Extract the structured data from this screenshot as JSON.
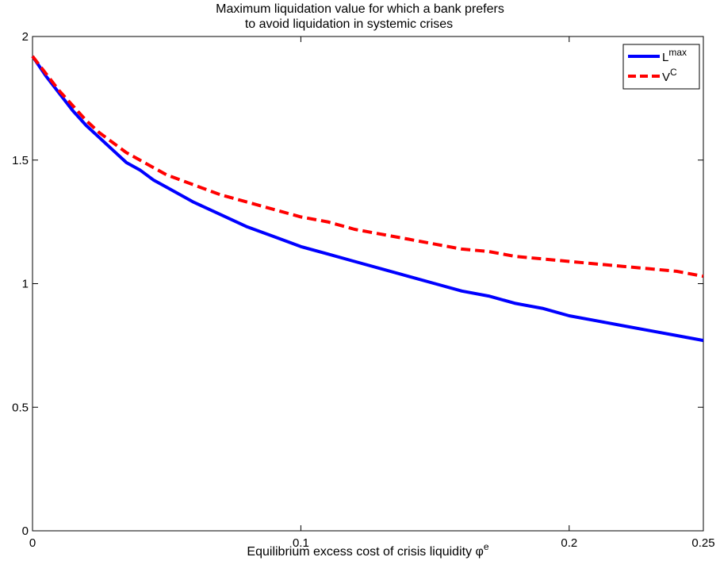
{
  "chart_data": {
    "type": "line",
    "title_line1": "Maximum liquidation value for which a bank prefers",
    "title_line2": "to avoid liquidation in systemic crises",
    "xlabel": "Equilibrium excess cost of crisis liquidity ",
    "xlabel_symbol": "φ",
    "xlabel_sup": "e",
    "xlim": [
      0,
      0.25
    ],
    "ylim": [
      0,
      2
    ],
    "xticks": [
      0,
      0.1,
      0.2,
      0.25
    ],
    "xtick_labels": [
      "0",
      "0.1",
      "0.2",
      "0.25"
    ],
    "yticks": [
      0,
      0.5,
      1,
      1.5,
      2
    ],
    "ytick_labels": [
      "0",
      "0.5",
      "1",
      "1.5",
      "2"
    ],
    "grid": false,
    "legend_position": "top-right",
    "x": [
      0,
      0.005,
      0.01,
      0.015,
      0.02,
      0.025,
      0.03,
      0.035,
      0.04,
      0.045,
      0.05,
      0.06,
      0.07,
      0.08,
      0.09,
      0.1,
      0.11,
      0.12,
      0.13,
      0.14,
      0.15,
      0.16,
      0.17,
      0.18,
      0.19,
      0.2,
      0.21,
      0.22,
      0.23,
      0.24,
      0.25
    ],
    "series": [
      {
        "name": "L",
        "name_sup": "max",
        "color": "#0000ff",
        "style": "solid",
        "values": [
          1.92,
          1.84,
          1.77,
          1.7,
          1.64,
          1.59,
          1.54,
          1.49,
          1.46,
          1.42,
          1.39,
          1.33,
          1.28,
          1.23,
          1.19,
          1.15,
          1.12,
          1.09,
          1.06,
          1.03,
          1.0,
          0.97,
          0.95,
          0.92,
          0.9,
          0.87,
          0.85,
          0.83,
          0.81,
          0.79,
          0.77
        ]
      },
      {
        "name": "V",
        "name_sup": "C",
        "color": "#ff0000",
        "style": "dashed",
        "values": [
          1.92,
          1.85,
          1.78,
          1.72,
          1.66,
          1.61,
          1.57,
          1.53,
          1.5,
          1.47,
          1.44,
          1.4,
          1.36,
          1.33,
          1.3,
          1.27,
          1.25,
          1.22,
          1.2,
          1.18,
          1.16,
          1.14,
          1.13,
          1.11,
          1.1,
          1.09,
          1.08,
          1.07,
          1.06,
          1.05,
          1.03
        ]
      }
    ]
  }
}
